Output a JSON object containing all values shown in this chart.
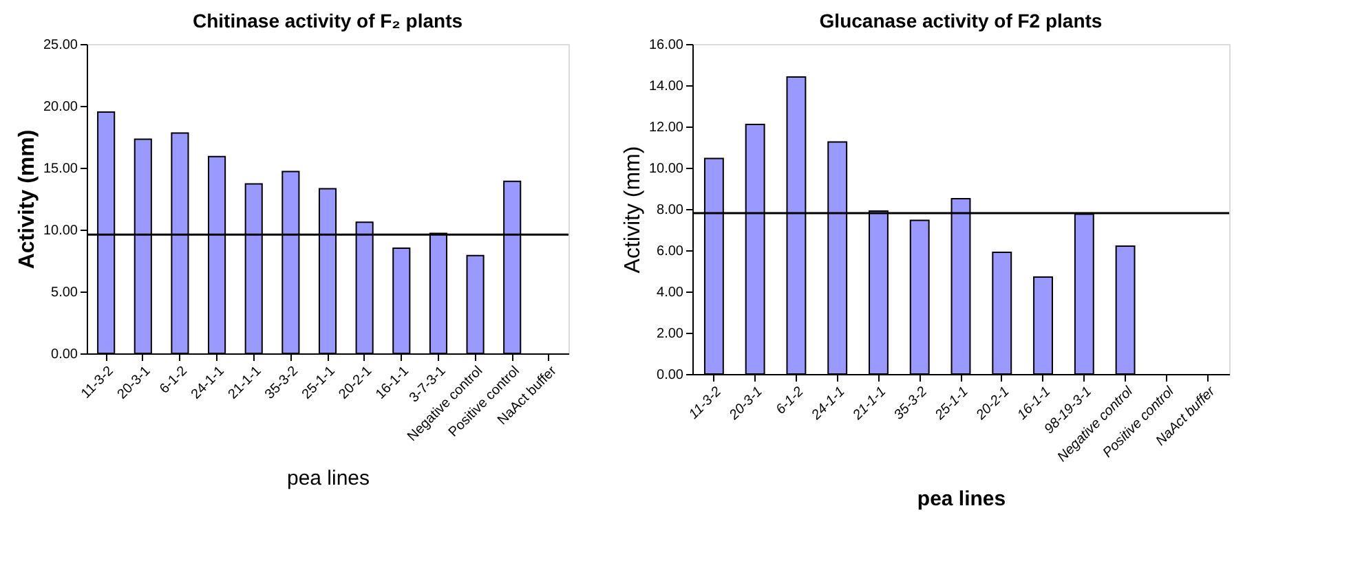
{
  "chart_data": [
    {
      "type": "bar",
      "title": "Chitinase activity of F₂ plants",
      "xlabel": "pea lines",
      "ylabel": "Activity (mm)",
      "categories": [
        "11-3-2",
        "20-3-1",
        "6-1-2",
        "24-1-1",
        "21-1-1",
        "35-3-2",
        "25-1-1",
        "20-2-1",
        "16-1-1",
        "3-7-3-1",
        "Negative control",
        "Positive control",
        "NaAct buffer"
      ],
      "values": [
        19.5,
        17.3,
        17.8,
        15.9,
        13.7,
        14.7,
        13.3,
        10.6,
        8.5,
        9.7,
        7.9,
        13.9,
        null
      ],
      "color": "#9999ff",
      "ylim": [
        0,
        25
      ],
      "yticks": [
        {
          "value": 0,
          "label": "0.00"
        },
        {
          "value": 5,
          "label": "5.00"
        },
        {
          "value": 10,
          "label": "10.00"
        },
        {
          "value": 15,
          "label": "15.00"
        },
        {
          "value": 20,
          "label": "20.00"
        },
        {
          "value": 25,
          "label": "25.00"
        }
      ],
      "ref_lines": [
        {
          "axis": "y",
          "value": 9.6,
          "color": "#000000"
        }
      ],
      "grid": false
    },
    {
      "type": "bar",
      "title": "Glucanase activity of F2 plants",
      "xlabel": "pea lines",
      "ylabel": "Activity (mm)",
      "categories": [
        "11-3-2",
        "20-3-1",
        "6-1-2",
        "24-1-1",
        "21-1-1",
        "35-3-2",
        "25-1-1",
        "20-2-1",
        "16-1-1",
        "98-19-3-1",
        "Negative control",
        "Positive control",
        "NaAct buffer"
      ],
      "values": [
        10.45,
        12.1,
        14.4,
        11.25,
        7.9,
        7.45,
        8.5,
        5.9,
        4.7,
        7.75,
        6.2,
        null,
        null
      ],
      "color": "#9999ff",
      "ylim": [
        0,
        16
      ],
      "yticks": [
        {
          "value": 0,
          "label": "0.00"
        },
        {
          "value": 2,
          "label": "2.00"
        },
        {
          "value": 4,
          "label": "4.00"
        },
        {
          "value": 6,
          "label": "6.00"
        },
        {
          "value": 8,
          "label": "8.00"
        },
        {
          "value": 10,
          "label": "10.00"
        },
        {
          "value": 12,
          "label": "12.00"
        },
        {
          "value": 14,
          "label": "14.00"
        },
        {
          "value": 16,
          "label": "16.00"
        }
      ],
      "ref_lines": [
        {
          "axis": "y",
          "value": 7.8,
          "color": "#000000"
        }
      ],
      "grid": false
    }
  ]
}
